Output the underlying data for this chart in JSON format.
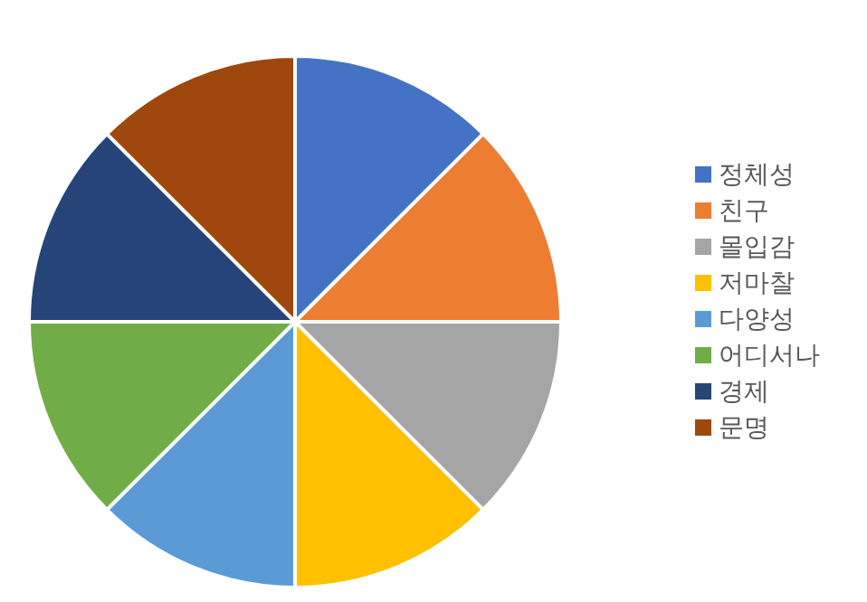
{
  "chart_data": {
    "type": "pie",
    "categories": [
      "정체성",
      "친구",
      "몰입감",
      "저마찰",
      "다양성",
      "어디서나",
      "경제",
      "문명"
    ],
    "values": [
      12.5,
      12.5,
      12.5,
      12.5,
      12.5,
      12.5,
      12.5,
      12.5
    ],
    "colors": [
      "#4472c4",
      "#ed7d31",
      "#a5a5a5",
      "#ffc000",
      "#5b9bd5",
      "#70ad47",
      "#264478",
      "#9e480e"
    ],
    "legend": "right"
  }
}
